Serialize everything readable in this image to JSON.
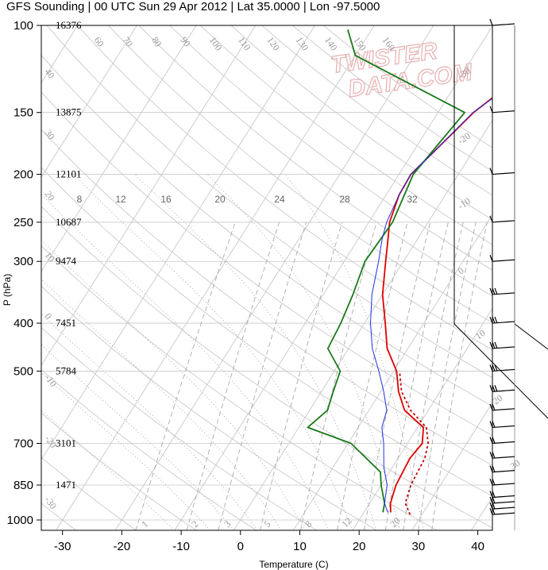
{
  "title": "GFS Sounding | 00 UTC Sun 29 Apr 2012 | Lat 35.0000 | Lon -97.5000",
  "watermark": {
    "line1": "TWISTER",
    "line2": "DATA.COM"
  },
  "colors": {
    "temp": "#e00000",
    "dewpoint": "#1a7a1a",
    "parcel": "#2030e0",
    "virtual": "#c00000",
    "grid": "#c8c8c8"
  },
  "chart_data": {
    "type": "line",
    "xlabel": "Temperature (C)",
    "ylabel": "P (hPa)",
    "xlim": [
      -34,
      45
    ],
    "ylim": [
      1000,
      100
    ],
    "x_ticks": [
      -30,
      -20,
      -10,
      0,
      10,
      20,
      30,
      40
    ],
    "y_ticks": [
      100,
      150,
      200,
      250,
      300,
      400,
      500,
      700,
      850,
      1000
    ],
    "height_labels": [
      {
        "p": 100,
        "h": "16376"
      },
      {
        "p": 150,
        "h": "13875"
      },
      {
        "p": 200,
        "h": "12101"
      },
      {
        "p": 250,
        "h": "10687"
      },
      {
        "p": 300,
        "h": "9474"
      },
      {
        "p": 400,
        "h": "7451"
      },
      {
        "p": 500,
        "h": "5784"
      },
      {
        "p": 700,
        "h": "3101"
      },
      {
        "p": 850,
        "h": "1471"
      }
    ],
    "skewed_isotherm_labels": [
      "60",
      "70",
      "80",
      "90",
      "100",
      "110",
      "120",
      "130",
      "140",
      "150",
      "160"
    ],
    "left_isotherm_labels": [
      "40",
      "30",
      "20",
      "10",
      "0",
      "-10",
      "-20",
      "-30"
    ],
    "right_isotherm_labels": [
      "-30",
      "-20",
      "-10",
      "0",
      "10",
      "20",
      "30"
    ],
    "mixing_ratio_upper_labels": [
      "8",
      "12",
      "16",
      "20",
      "24",
      "28",
      "32"
    ],
    "mixing_ratio_lower_labels": [
      "1",
      "2",
      "3",
      "5",
      "8",
      "12",
      "20"
    ],
    "series": [
      {
        "key": "temperature",
        "points": [
          [
            24.5,
            965
          ],
          [
            23.5,
            925
          ],
          [
            22.5,
            850
          ],
          [
            22,
            750
          ],
          [
            22.5,
            700
          ],
          [
            21,
            650
          ],
          [
            16,
            600
          ],
          [
            13,
            550
          ],
          [
            10.5,
            500
          ],
          [
            6.5,
            450
          ],
          [
            3.5,
            400
          ],
          [
            0,
            350
          ],
          [
            -3,
            300
          ],
          [
            -5,
            270
          ],
          [
            -6.5,
            250
          ],
          [
            -7.8,
            220
          ],
          [
            -8,
            200
          ],
          [
            -6.5,
            180
          ],
          [
            -4,
            150
          ],
          [
            -1.5,
            135
          ],
          [
            8,
            100
          ]
        ]
      },
      {
        "key": "virtual_temperature",
        "points": [
          [
            28,
            975
          ],
          [
            26,
            925
          ],
          [
            25,
            850
          ],
          [
            24.5,
            750
          ],
          [
            23.5,
            700
          ],
          [
            21.5,
            650
          ],
          [
            17,
            600
          ],
          [
            13.5,
            550
          ],
          [
            11,
            500
          ]
        ]
      },
      {
        "key": "dewpoint",
        "points": [
          [
            23.2,
            965
          ],
          [
            22.5,
            925
          ],
          [
            20,
            850
          ],
          [
            18.5,
            800
          ],
          [
            10.5,
            700
          ],
          [
            1.5,
            650
          ],
          [
            3,
            600
          ],
          [
            2,
            550
          ],
          [
            1,
            500
          ],
          [
            -3.5,
            450
          ],
          [
            -4,
            400
          ],
          [
            -5,
            350
          ],
          [
            -6.5,
            300
          ],
          [
            -6,
            250
          ],
          [
            -7.6,
            200
          ],
          [
            -5.5,
            150
          ],
          [
            -30,
            115
          ],
          [
            -34,
            102
          ]
        ]
      },
      {
        "key": "parcel",
        "points": [
          [
            24,
            965
          ],
          [
            22.5,
            925
          ],
          [
            21,
            850
          ],
          [
            18.5,
            780
          ],
          [
            16,
            700
          ],
          [
            14,
            650
          ],
          [
            13,
            600
          ],
          [
            10.5,
            550
          ],
          [
            7.5,
            500
          ],
          [
            4,
            450
          ],
          [
            1,
            400
          ],
          [
            -1.8,
            350
          ],
          [
            -4.2,
            300
          ],
          [
            -6,
            270
          ],
          [
            -7,
            250
          ],
          [
            -7.8,
            220
          ],
          [
            -8,
            200
          ],
          [
            -6.5,
            180
          ],
          [
            -4.1,
            150
          ],
          [
            -1.2,
            135
          ],
          [
            9,
            100
          ]
        ]
      }
    ],
    "wind_barbs_hPa": [
      100,
      150,
      200,
      250,
      300,
      350,
      400,
      450,
      500,
      550,
      600,
      650,
      700,
      750,
      800,
      850,
      900,
      925,
      950,
      975
    ]
  }
}
